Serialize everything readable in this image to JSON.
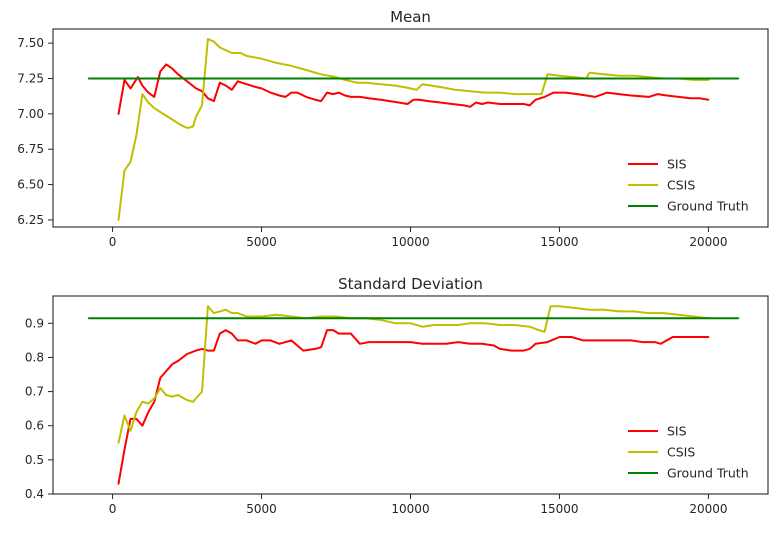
{
  "chart_data": [
    {
      "type": "line",
      "title": "Mean",
      "xlabel": "",
      "ylabel": "",
      "xlim": [
        -2000,
        22000
      ],
      "ylim": [
        6.2,
        7.6
      ],
      "xticks": [
        0,
        5000,
        10000,
        15000,
        20000
      ],
      "xtick_labels": [
        "0",
        "5000",
        "10000",
        "15000",
        "20000"
      ],
      "yticks": [
        6.25,
        6.5,
        6.75,
        7.0,
        7.25,
        7.5
      ],
      "ytick_labels": [
        "6.25",
        "6.50",
        "6.75",
        "7.00",
        "7.25",
        "7.50"
      ],
      "grid": false,
      "legend_position": "bottom-right",
      "series": [
        {
          "name": "SIS",
          "color": "#ff0000",
          "x": [
            200,
            400,
            600,
            850,
            1000,
            1200,
            1400,
            1600,
            1800,
            2000,
            2200,
            2500,
            2800,
            3000,
            3200,
            3400,
            3600,
            3800,
            4000,
            4200,
            4500,
            4800,
            5000,
            5300,
            5600,
            5800,
            6000,
            6200,
            6500,
            6800,
            7000,
            7200,
            7400,
            7600,
            7800,
            8000,
            8300,
            8600,
            9000,
            9300,
            9600,
            9900,
            10100,
            10300,
            10600,
            11000,
            11400,
            11800,
            12000,
            12200,
            12400,
            12600,
            13000,
            13400,
            13800,
            14000,
            14200,
            14500,
            14800,
            15200,
            15600,
            15900,
            16200,
            16600,
            17000,
            17400,
            18000,
            18300,
            18600,
            19000,
            19400,
            19700,
            20000
          ],
          "y": [
            7.0,
            7.24,
            7.18,
            7.26,
            7.2,
            7.15,
            7.12,
            7.3,
            7.35,
            7.32,
            7.28,
            7.23,
            7.18,
            7.16,
            7.11,
            7.09,
            7.22,
            7.2,
            7.17,
            7.23,
            7.21,
            7.19,
            7.18,
            7.15,
            7.13,
            7.12,
            7.15,
            7.15,
            7.12,
            7.1,
            7.09,
            7.15,
            7.14,
            7.15,
            7.13,
            7.12,
            7.12,
            7.11,
            7.1,
            7.09,
            7.08,
            7.07,
            7.1,
            7.1,
            7.09,
            7.08,
            7.07,
            7.06,
            7.05,
            7.08,
            7.07,
            7.08,
            7.07,
            7.07,
            7.07,
            7.06,
            7.1,
            7.12,
            7.15,
            7.15,
            7.14,
            7.13,
            7.12,
            7.15,
            7.14,
            7.13,
            7.12,
            7.14,
            7.13,
            7.12,
            7.11,
            7.11,
            7.1
          ]
        },
        {
          "name": "CSIS",
          "color": "#bfbf00",
          "x": [
            200,
            400,
            600,
            800,
            1000,
            1200,
            1400,
            1700,
            2000,
            2300,
            2500,
            2700,
            2800,
            3000,
            3200,
            3400,
            3600,
            3800,
            4000,
            4300,
            4500,
            5000,
            5500,
            6000,
            6500,
            7000,
            7500,
            7800,
            8200,
            8500,
            9000,
            9500,
            10000,
            10200,
            10400,
            11000,
            11500,
            12000,
            12500,
            13000,
            13500,
            14000,
            14400,
            14600,
            15000,
            15500,
            15900,
            16000,
            16500,
            17000,
            17500,
            18000,
            18500,
            19000,
            19500,
            20000
          ],
          "y": [
            6.25,
            6.6,
            6.66,
            6.85,
            7.14,
            7.08,
            7.04,
            7.0,
            6.96,
            6.92,
            6.9,
            6.91,
            6.98,
            7.06,
            7.53,
            7.51,
            7.47,
            7.45,
            7.43,
            7.43,
            7.41,
            7.39,
            7.36,
            7.34,
            7.31,
            7.28,
            7.26,
            7.24,
            7.22,
            7.22,
            7.21,
            7.2,
            7.18,
            7.17,
            7.21,
            7.19,
            7.17,
            7.16,
            7.15,
            7.15,
            7.14,
            7.14,
            7.14,
            7.28,
            7.27,
            7.26,
            7.25,
            7.29,
            7.28,
            7.27,
            7.27,
            7.26,
            7.25,
            7.25,
            7.24,
            7.24
          ]
        },
        {
          "name": "Ground Truth",
          "color": "#008000",
          "x": [
            -800,
            21000
          ],
          "y": [
            7.25,
            7.25
          ]
        }
      ]
    },
    {
      "type": "line",
      "title": "Standard Deviation",
      "xlabel": "",
      "ylabel": "",
      "xlim": [
        -2000,
        22000
      ],
      "ylim": [
        0.4,
        0.98
      ],
      "xticks": [
        0,
        5000,
        10000,
        15000,
        20000
      ],
      "xtick_labels": [
        "0",
        "5000",
        "10000",
        "15000",
        "20000"
      ],
      "yticks": [
        0.4,
        0.5,
        0.6,
        0.7,
        0.8,
        0.9
      ],
      "ytick_labels": [
        "0.4",
        "0.5",
        "0.6",
        "0.7",
        "0.8",
        "0.9"
      ],
      "grid": false,
      "legend_position": "bottom-right",
      "series": [
        {
          "name": "SIS",
          "color": "#ff0000",
          "x": [
            200,
            400,
            600,
            800,
            1000,
            1200,
            1400,
            1600,
            1800,
            2000,
            2200,
            2500,
            2800,
            3000,
            3200,
            3400,
            3600,
            3800,
            4000,
            4200,
            4500,
            4800,
            5000,
            5300,
            5600,
            6000,
            6400,
            6800,
            7000,
            7200,
            7400,
            7600,
            8000,
            8300,
            8600,
            9000,
            9500,
            10000,
            10400,
            10800,
            11200,
            11600,
            12000,
            12400,
            12800,
            13000,
            13400,
            13800,
            14000,
            14200,
            14600,
            15000,
            15400,
            15800,
            16200,
            16600,
            17000,
            17400,
            17800,
            18200,
            18400,
            18800,
            19200,
            19600,
            20000
          ],
          "y": [
            0.43,
            0.53,
            0.62,
            0.62,
            0.6,
            0.64,
            0.67,
            0.74,
            0.76,
            0.78,
            0.79,
            0.81,
            0.82,
            0.825,
            0.82,
            0.82,
            0.87,
            0.88,
            0.87,
            0.85,
            0.85,
            0.84,
            0.85,
            0.85,
            0.84,
            0.85,
            0.82,
            0.825,
            0.83,
            0.88,
            0.88,
            0.87,
            0.87,
            0.84,
            0.845,
            0.845,
            0.845,
            0.845,
            0.84,
            0.84,
            0.84,
            0.845,
            0.84,
            0.84,
            0.835,
            0.825,
            0.82,
            0.82,
            0.825,
            0.84,
            0.845,
            0.86,
            0.86,
            0.85,
            0.85,
            0.85,
            0.85,
            0.85,
            0.845,
            0.845,
            0.84,
            0.86,
            0.86,
            0.86,
            0.86
          ]
        },
        {
          "name": "CSIS",
          "color": "#bfbf00",
          "x": [
            200,
            400,
            600,
            800,
            1000,
            1200,
            1400,
            1600,
            1800,
            2000,
            2200,
            2500,
            2700,
            2800,
            3000,
            3200,
            3400,
            3600,
            3800,
            4000,
            4200,
            4500,
            5000,
            5500,
            6000,
            6500,
            7000,
            7500,
            8000,
            8500,
            9000,
            9500,
            10000,
            10400,
            10800,
            11200,
            11600,
            12000,
            12500,
            13000,
            13500,
            14000,
            14300,
            14500,
            14700,
            15000,
            15500,
            16000,
            16500,
            17000,
            17500,
            18000,
            18500,
            19000,
            19500,
            20000
          ],
          "y": [
            0.55,
            0.63,
            0.585,
            0.64,
            0.67,
            0.665,
            0.68,
            0.71,
            0.69,
            0.685,
            0.69,
            0.675,
            0.67,
            0.68,
            0.7,
            0.95,
            0.93,
            0.935,
            0.94,
            0.93,
            0.93,
            0.92,
            0.92,
            0.925,
            0.92,
            0.915,
            0.92,
            0.92,
            0.915,
            0.915,
            0.91,
            0.9,
            0.9,
            0.89,
            0.895,
            0.895,
            0.895,
            0.9,
            0.9,
            0.895,
            0.895,
            0.89,
            0.88,
            0.875,
            0.95,
            0.95,
            0.945,
            0.94,
            0.94,
            0.935,
            0.935,
            0.93,
            0.93,
            0.925,
            0.92,
            0.915
          ]
        },
        {
          "name": "Ground Truth",
          "color": "#008000",
          "x": [
            -800,
            21000
          ],
          "y": [
            0.915,
            0.915
          ]
        }
      ]
    }
  ]
}
